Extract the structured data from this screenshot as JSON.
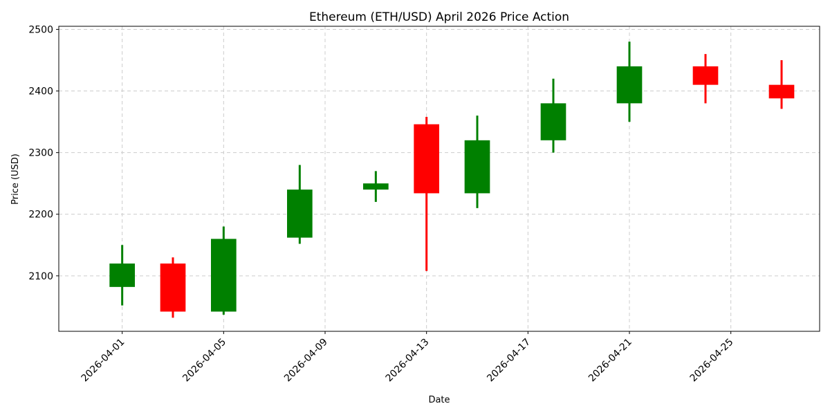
{
  "chart_data": {
    "type": "candlestick",
    "title": "Ethereum (ETH/USD) April 2026 Price Action",
    "xlabel": "Date",
    "ylabel": "Price (USD)",
    "ylim": [
      2010,
      2505
    ],
    "xlim": [
      "2026-03-29T12:00",
      "2026-04-28T12:00"
    ],
    "grid": true,
    "colors": {
      "up": "#008000",
      "down": "#ff0000"
    },
    "x_ticks": [
      "2026-04-01",
      "2026-04-05",
      "2026-04-09",
      "2026-04-13",
      "2026-04-17",
      "2026-04-21",
      "2026-04-25"
    ],
    "y_ticks": [
      2100,
      2200,
      2300,
      2400,
      2500
    ],
    "candles": [
      {
        "date": "2026-04-01",
        "open": 2082,
        "high": 2150,
        "low": 2052,
        "close": 2120
      },
      {
        "date": "2026-04-03",
        "open": 2120,
        "high": 2130,
        "low": 2032,
        "close": 2042
      },
      {
        "date": "2026-04-05",
        "open": 2042,
        "high": 2180,
        "low": 2037,
        "close": 2160
      },
      {
        "date": "2026-04-08",
        "open": 2162,
        "high": 2280,
        "low": 2152,
        "close": 2240
      },
      {
        "date": "2026-04-11",
        "open": 2240,
        "high": 2270,
        "low": 2220,
        "close": 2250
      },
      {
        "date": "2026-04-13",
        "open": 2346,
        "high": 2358,
        "low": 2108,
        "close": 2234
      },
      {
        "date": "2026-04-15",
        "open": 2234,
        "high": 2360,
        "low": 2210,
        "close": 2320
      },
      {
        "date": "2026-04-18",
        "open": 2320,
        "high": 2420,
        "low": 2300,
        "close": 2380
      },
      {
        "date": "2026-04-21",
        "open": 2380,
        "high": 2480,
        "low": 2350,
        "close": 2440
      },
      {
        "date": "2026-04-24",
        "open": 2440,
        "high": 2460,
        "low": 2380,
        "close": 2410
      },
      {
        "date": "2026-04-27",
        "open": 2410,
        "high": 2450,
        "low": 2371,
        "close": 2388
      }
    ]
  }
}
